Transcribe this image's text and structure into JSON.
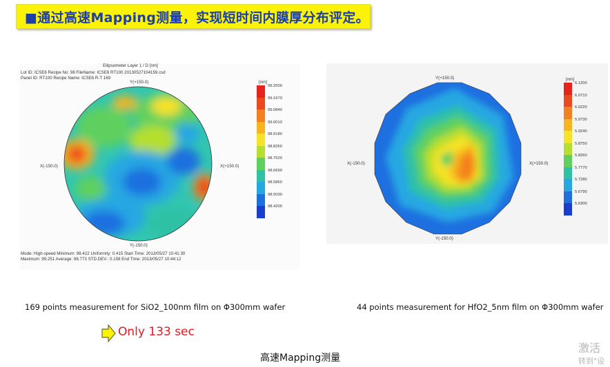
{
  "banner": {
    "bullet": "■",
    "text": "通过高速Mapping测量，实现短时间内膜厚分布评定。"
  },
  "left_map": {
    "title": "Ellipsometer Layer 1 / D [nm]",
    "header_line1": "Lot ID: ICSE6   Recipe No: 98   FileName: ICSE6 RT100 20130527104159.csd",
    "header_line2": "Panel ID: RT100   Recipe Name: ICSE6 R-T 169",
    "axis_top": "Y(+150.0)",
    "axis_bottom": "Y(-150.0)",
    "axis_left": "X(-150.0)",
    "axis_right": "X(+150.0)",
    "unit": "[nm]",
    "legend_values": [
      "99.2500",
      "99.1670",
      "99.0840",
      "99.0010",
      "98.9180",
      "98.8350",
      "98.7520",
      "98.6690",
      "98.5860",
      "98.5030",
      "98.4200"
    ],
    "footer_line1": "Mode: High-speed  Minimum: 98.422  Uniformity: 0.415  Start Time: 2013/05/27 10:41:30",
    "footer_line2": "Maximum: 99.251  Average: 98.773  STD.DEV.: 0.158  End Time: 2013/05/27 10:44:12"
  },
  "right_map": {
    "axis_top": "Y(+150.0)",
    "axis_bottom": "Y(-150.0)",
    "axis_left": "X(-150.0)",
    "axis_right": "X(+150.0)",
    "unit": "[nm]",
    "legend_values": [
      "6.1200",
      "6.0710",
      "6.0220",
      "5.9730",
      "5.9240",
      "5.8750",
      "5.8260",
      "5.7770",
      "5.7280",
      "5.6790",
      "5.6300"
    ]
  },
  "legend_colors": [
    "#e8231c",
    "#ec4a1e",
    "#f4801f",
    "#f7b41f",
    "#f7e228",
    "#b6de2e",
    "#5fd05e",
    "#2fc1a6",
    "#25a7e2",
    "#1e6fe0",
    "#1a3fd0"
  ],
  "captions": {
    "left": "169 points measurement for SiO2_100nm film on Φ300mm wafer",
    "right": "44 points measurement for HfO2_5nm film on Φ300mm wafer"
  },
  "highlight": {
    "text": "Only 133 sec",
    "color": "#e8171d"
  },
  "bottom_title": "高速Mapping测量",
  "watermark": {
    "line1": "激活",
    "line2": "转到\"设"
  }
}
